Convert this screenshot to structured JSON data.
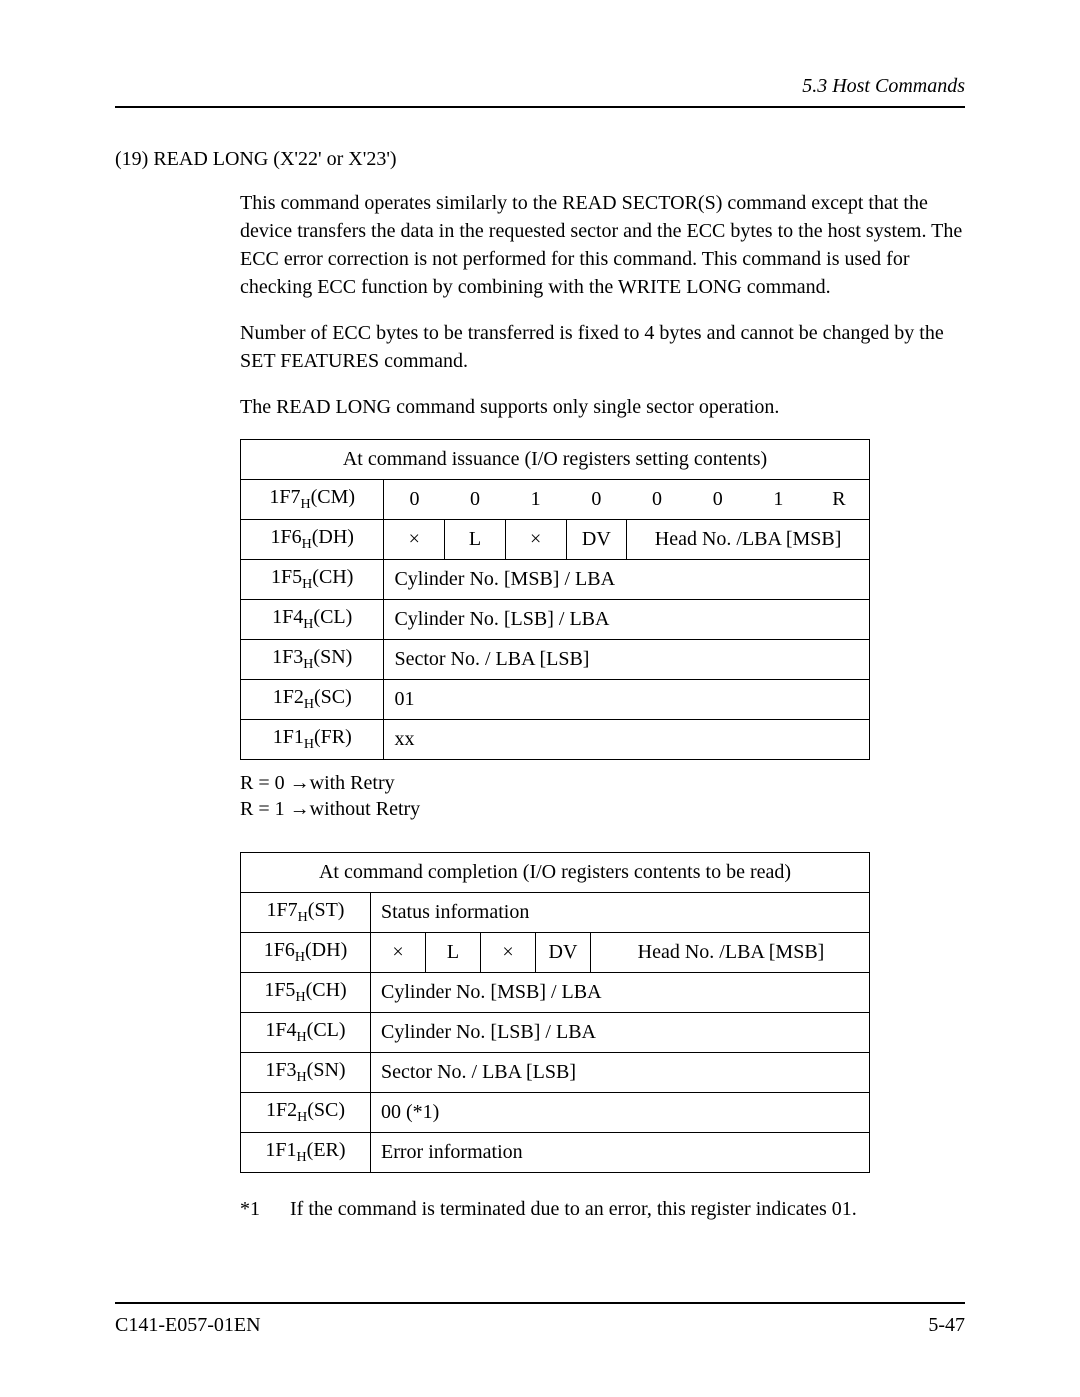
{
  "header": {
    "section": "5.3  Host Commands"
  },
  "title": "(19)  READ LONG (X'22' or X'23')",
  "paragraphs": {
    "p1": "This command operates similarly to the READ SECTOR(S) command except that the device transfers the data in the requested sector and the ECC bytes to the host system. The ECC error correction is not performed for this command. This command is used for checking ECC function by combining with the WRITE LONG command.",
    "p2": "Number of ECC bytes to be transferred is fixed to 4 bytes and cannot be changed by the SET FEATURES command.",
    "p3": "The READ LONG command supports only single sector operation."
  },
  "table1": {
    "title": "At command issuance (I/O registers setting contents)",
    "regs": {
      "CM": {
        "addr": "1F7",
        "sub": "H",
        "code": "(CM)"
      },
      "DH": {
        "addr": "1F6",
        "sub": "H",
        "code": "(DH)"
      },
      "CH": {
        "addr": "1F5",
        "sub": "H",
        "code": "(CH)"
      },
      "CL": {
        "addr": "1F4",
        "sub": "H",
        "code": "(CL)"
      },
      "SN": {
        "addr": "1F3",
        "sub": "H",
        "code": "(SN)"
      },
      "SC": {
        "addr": "1F2",
        "sub": "H",
        "code": "(SC)"
      },
      "FR": {
        "addr": "1F1",
        "sub": "H",
        "code": "(FR)"
      }
    },
    "cmBits": [
      "0",
      "0",
      "1",
      "0",
      "0",
      "0",
      "1",
      "R"
    ],
    "dhBits": [
      "×",
      "L",
      "×",
      "DV"
    ],
    "dhTail": "Head No. /LBA [MSB]",
    "chVal": "Cylinder No. [MSB] / LBA",
    "clVal": "Cylinder No. [LSB] / LBA",
    "snVal": "Sector No. / LBA [LSB]",
    "scVal": "01",
    "frVal": "xx"
  },
  "retry": {
    "line1": "R = 0 →with Retry",
    "line2": "R = 1 →without Retry"
  },
  "table2": {
    "title": "At command completion (I/O registers contents to be read)",
    "regs": {
      "ST": {
        "addr": "1F7",
        "sub": "H",
        "code": "(ST)"
      },
      "DH": {
        "addr": "1F6",
        "sub": "H",
        "code": "(DH)"
      },
      "CH": {
        "addr": "1F5",
        "sub": "H",
        "code": "(CH)"
      },
      "CL": {
        "addr": "1F4",
        "sub": "H",
        "code": "(CL)"
      },
      "SN": {
        "addr": "1F3",
        "sub": "H",
        "code": "(SN)"
      },
      "SC": {
        "addr": "1F2",
        "sub": "H",
        "code": "(SC)"
      },
      "ER": {
        "addr": "1F1",
        "sub": "H",
        "code": "(ER)"
      }
    },
    "stVal": "Status information",
    "dhBits": [
      "×",
      "L",
      "×",
      "DV"
    ],
    "dhTail": "Head No. /LBA [MSB]",
    "chVal": "Cylinder No. [MSB] / LBA",
    "clVal": "Cylinder No. [LSB] / LBA",
    "snVal": "Sector No. / LBA [LSB]",
    "scVal": "00 (*1)",
    "erVal": "Error information"
  },
  "footnote": {
    "marker": "*1",
    "text": "If the command is terminated due to an error, this register indicates 01."
  },
  "footer": {
    "doc": "C141-E057-01EN",
    "page": "5-47"
  }
}
